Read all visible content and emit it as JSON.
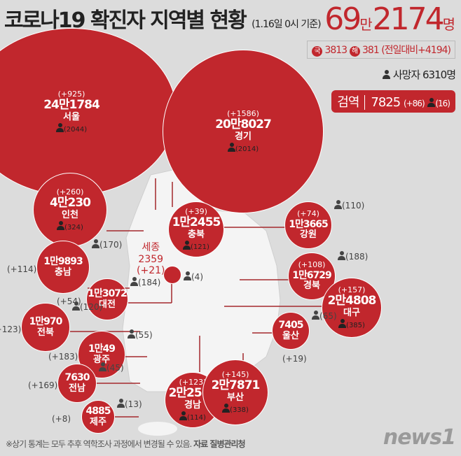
{
  "header": {
    "title": "코로나19 확진자 지역별 현황",
    "date_note": "(1.16일 0시 기준)"
  },
  "total": {
    "man": "69",
    "man_unit": "만",
    "rest": "2174",
    "unit": "명"
  },
  "breakdown": {
    "domestic_badge": "국",
    "domestic": "3813",
    "overseas_badge": "해",
    "overseas": "381",
    "vs_prev": "(전일대비+4194)"
  },
  "deaths": {
    "label": "사망자",
    "value": "6310명"
  },
  "quarantine": {
    "label": "검역",
    "value": "7825",
    "change": "(+86)",
    "deaths": "(16)"
  },
  "regions": [
    {
      "id": "seoul",
      "name": "서울",
      "total": "24만1784",
      "change": "(+925)",
      "deaths": "(2044)"
    },
    {
      "id": "gyeonggi",
      "name": "경기",
      "total": "20만8027",
      "change": "(+1586)",
      "deaths": "(2014)"
    },
    {
      "id": "incheon",
      "name": "인천",
      "total": "4만230",
      "change": "(+260)",
      "deaths": "(324)"
    },
    {
      "id": "chungbuk",
      "name": "충북",
      "total": "1만2455",
      "change": "(+39)",
      "deaths": "(121)"
    },
    {
      "id": "gangwon",
      "name": "강원",
      "total": "1만3665",
      "change": "(+74)",
      "deaths": "(110)"
    },
    {
      "id": "chungnam",
      "name": "충남",
      "total": "1만9893",
      "change": "(+114)",
      "deaths": "(170)"
    },
    {
      "id": "sejong",
      "name": "세종",
      "total": "2359",
      "change": "(+21)",
      "deaths": "(4)"
    },
    {
      "id": "daejeon",
      "name": "대전",
      "total": "1만3072",
      "change": "(+54)",
      "deaths": "(184)"
    },
    {
      "id": "gyeongbuk",
      "name": "경북",
      "total": "1만6729",
      "change": "(+108)",
      "deaths": "(188)"
    },
    {
      "id": "daegu",
      "name": "대구",
      "total": "2만4808",
      "change": "(+157)",
      "deaths": "(385)"
    },
    {
      "id": "jeonbuk",
      "name": "전북",
      "total": "1만970",
      "change": "(+123)",
      "deaths": "(120)"
    },
    {
      "id": "gwangju",
      "name": "광주",
      "total": "1만49",
      "change": "(+183)",
      "deaths": "(55)"
    },
    {
      "id": "ulsan",
      "name": "울산",
      "total": "7405",
      "change": "(+19)",
      "deaths": "(65)"
    },
    {
      "id": "jeonnam",
      "name": "전남",
      "total": "7630",
      "change": "(+169)",
      "deaths": "(45)"
    },
    {
      "id": "gyeongnam",
      "name": "경남",
      "total": "2만2517",
      "change": "(+123)",
      "deaths": "(114)"
    },
    {
      "id": "busan",
      "name": "부산",
      "total": "2만7871",
      "change": "(+145)",
      "deaths": "(338)"
    },
    {
      "id": "jeju",
      "name": "제주",
      "total": "4885",
      "change": "(+8)",
      "deaths": "(13)"
    }
  ],
  "footer": {
    "note": "※상기 통계는 모두 추후 역학조사 과정에서 변경될 수 있음.",
    "source": "자료 질병관리청"
  },
  "logo": "news1",
  "colors": {
    "accent": "#c1272d",
    "background": "#dcdcdc",
    "map": "#f4f4f4"
  }
}
